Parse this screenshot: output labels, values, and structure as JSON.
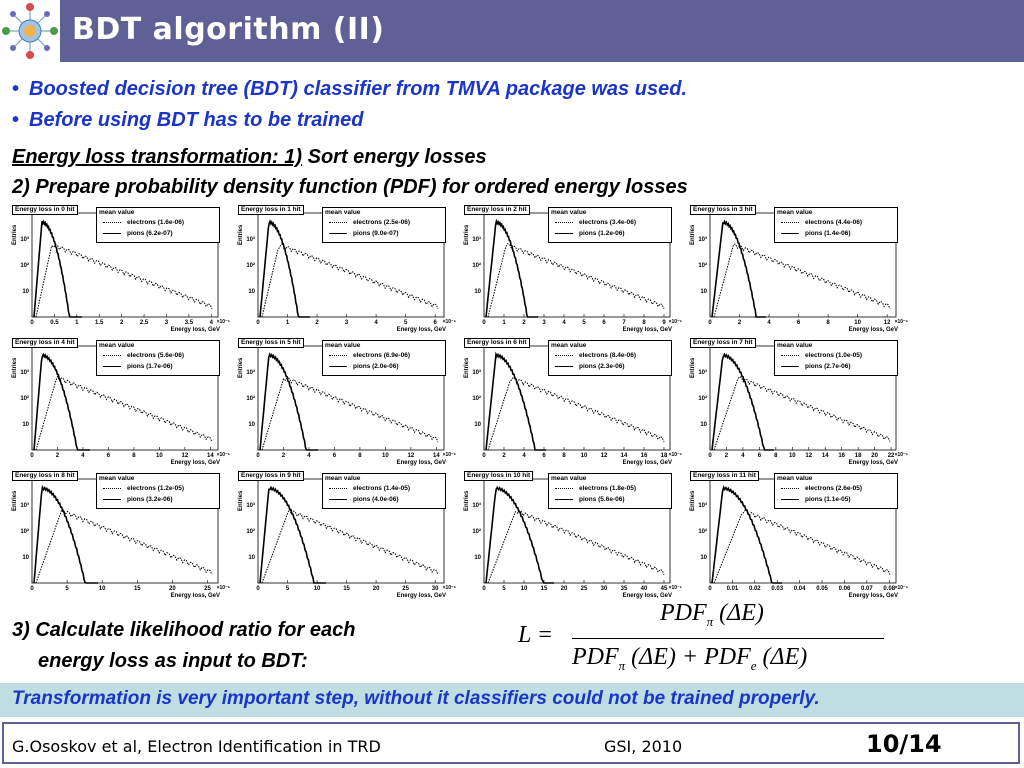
{
  "header": {
    "title": "BDT algorithm (II)"
  },
  "bullets": [
    "Boosted decision tree (BDT) classifier from TMVA package was used.",
    "Before using BDT has to be trained"
  ],
  "steps": {
    "step1_underlined": "Energy loss transformation: 1)",
    "step1_rest": " Sort energy losses",
    "step2": "2)  Prepare probability density function (PDF) for ordered energy losses",
    "step3_line1": "3)  Calculate likelihood ratio for each",
    "step3_line2": "energy loss as input to BDT:"
  },
  "formula": {
    "lhs": "L =",
    "numerator": "PDF",
    "numerator_sub": "π",
    "numerator_arg": " (ΔE)",
    "denominator_a": "PDF",
    "denominator_a_sub": "π",
    "denominator_a_arg": " (ΔE) + ",
    "denominator_b": "PDF",
    "denominator_b_sub": "e",
    "denominator_b_arg": " (ΔE)"
  },
  "chart_data": {
    "type": "line",
    "common": {
      "ylabel": "Entries",
      "xlabel": "Energy loss, GeV",
      "x_multiplier": "×10⁻⁶",
      "legend_header": "mean value",
      "y_log_scale": true,
      "y_ticks": [
        "10",
        "10²",
        "10³"
      ],
      "series": [
        "electrons",
        "pions"
      ]
    },
    "panels": [
      {
        "title": "Energy loss in 0 hit",
        "electrons_mean": "electrons (1.6e-06)",
        "pions_mean": "pions (6.2e-07)",
        "xticks": [
          "0",
          "0.5",
          "1",
          "1.5",
          "2",
          "2.5",
          "3",
          "3.5",
          "4"
        ]
      },
      {
        "title": "Energy loss in 1 hit",
        "electrons_mean": "electrons (2.5e-06)",
        "pions_mean": "pions (9.0e-07)",
        "xticks": [
          "0",
          "1",
          "2",
          "3",
          "4",
          "5",
          "6"
        ]
      },
      {
        "title": "Energy loss in 2 hit",
        "electrons_mean": "electrons (3.4e-06)",
        "pions_mean": "pions (1.2e-06)",
        "xticks": [
          "0",
          "1",
          "2",
          "3",
          "4",
          "5",
          "6",
          "7",
          "8",
          "9"
        ]
      },
      {
        "title": "Energy loss in 3 hit",
        "electrons_mean": "electrons (4.4e-06)",
        "pions_mean": "pions (1.4e-06)",
        "xticks": [
          "0",
          "2",
          "4",
          "6",
          "8",
          "10",
          "12"
        ]
      },
      {
        "title": "Energy loss in 4 hit",
        "electrons_mean": "electrons (5.6e-06)",
        "pions_mean": "pions (1.7e-06)",
        "xticks": [
          "0",
          "2",
          "4",
          "6",
          "8",
          "10",
          "12",
          "14"
        ]
      },
      {
        "title": "Energy loss in 5 hit",
        "electrons_mean": "electrons (6.9e-06)",
        "pions_mean": "pions (2.0e-06)",
        "xticks": [
          "0",
          "2",
          "4",
          "6",
          "8",
          "10",
          "12",
          "14"
        ]
      },
      {
        "title": "Energy loss in 6 hit",
        "electrons_mean": "electrons (8.4e-06)",
        "pions_mean": "pions (2.3e-06)",
        "xticks": [
          "0",
          "2",
          "4",
          "6",
          "8",
          "10",
          "12",
          "14",
          "16",
          "18"
        ]
      },
      {
        "title": "Energy loss in 7 hit",
        "electrons_mean": "electrons (1.0e-05)",
        "pions_mean": "pions (2.7e-06)",
        "xticks": [
          "0",
          "2",
          "4",
          "6",
          "8",
          "10",
          "12",
          "14",
          "16",
          "18",
          "20",
          "22"
        ]
      },
      {
        "title": "Energy loss in 8 hit",
        "electrons_mean": "electrons (1.2e-05)",
        "pions_mean": "pions (3.2e-06)",
        "xticks": [
          "0",
          "5",
          "10",
          "15",
          "20",
          "25"
        ]
      },
      {
        "title": "Energy loss in 9 hit",
        "electrons_mean": "electrons (1.4e-05)",
        "pions_mean": "pions (4.0e-06)",
        "xticks": [
          "0",
          "5",
          "10",
          "15",
          "20",
          "25",
          "30"
        ]
      },
      {
        "title": "Energy loss in 10 hit",
        "electrons_mean": "electrons (1.8e-05)",
        "pions_mean": "pions (5.6e-06)",
        "xticks": [
          "0",
          "5",
          "10",
          "15",
          "20",
          "25",
          "30",
          "35",
          "40",
          "45"
        ]
      },
      {
        "title": "Energy loss in 11 hit",
        "electrons_mean": "electrons (2.6e-05)",
        "pions_mean": "pions (1.1e-05)",
        "xticks": [
          "0",
          "0.01",
          "0.02",
          "0.03",
          "0.04",
          "0.05",
          "0.06",
          "0.07",
          "0.08"
        ]
      }
    ]
  },
  "note": "Transformation is very important step, without it classifiers could not be trained properly.",
  "footer": {
    "author": "G.Ososkov et al, Electron Identification in TRD",
    "venue": "GSI, 2010",
    "page": "10/14"
  }
}
